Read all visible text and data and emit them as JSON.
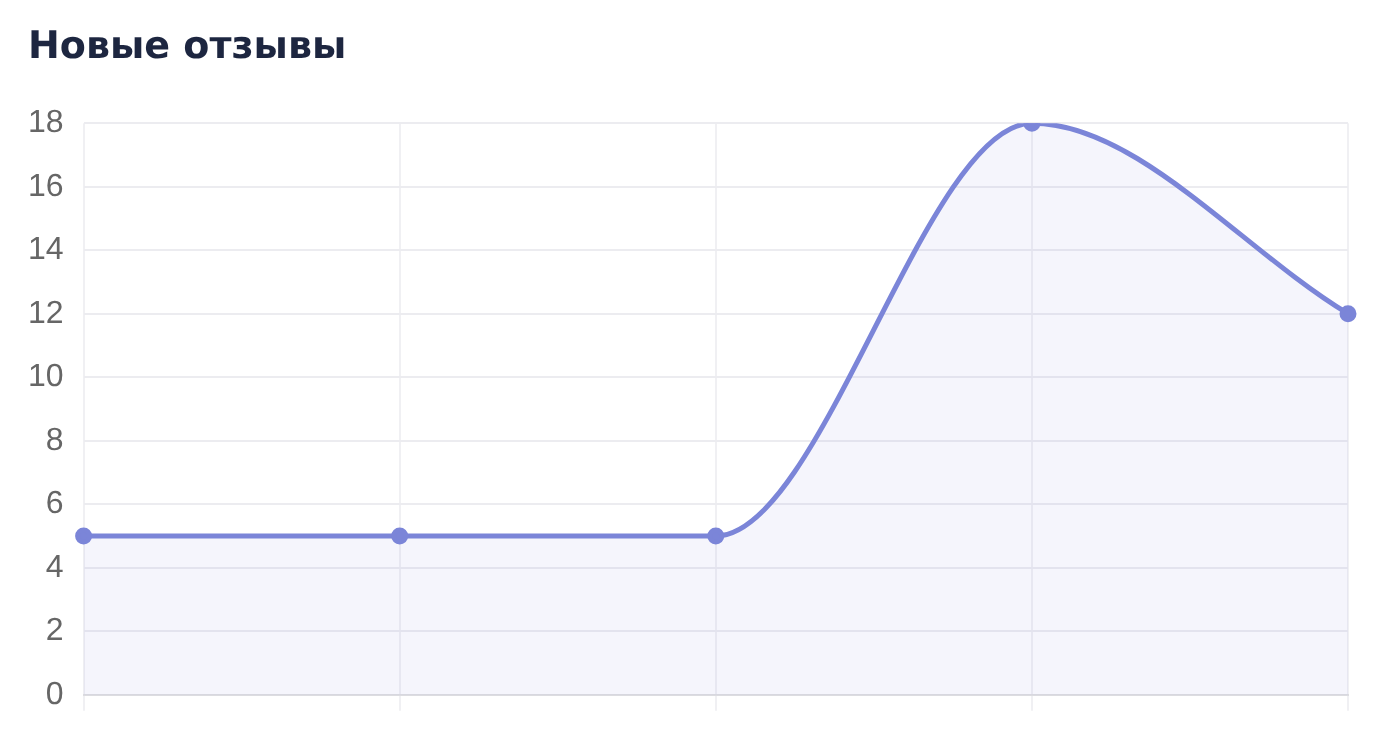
{
  "chart_data": {
    "type": "area",
    "title": "Новые отзывы",
    "categories": [
      null,
      null,
      null,
      null,
      null
    ],
    "series": [
      {
        "color": "#7b85d8",
        "values": [
          5,
          5,
          5,
          18,
          12
        ]
      }
    ],
    "ylim": [
      0,
      18
    ],
    "yticks": [
      0,
      2,
      4,
      6,
      8,
      10,
      12,
      14,
      16,
      18
    ],
    "grid": true,
    "legend": false,
    "tick_labels": "y",
    "marker": "circle",
    "line_style": "solid"
  }
}
